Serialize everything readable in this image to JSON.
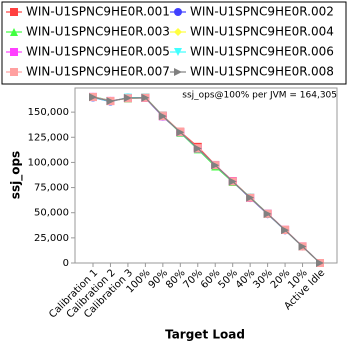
{
  "chart_data": {
    "type": "line",
    "annotation": "ssj_ops@100% per JVM = 164,305",
    "x_label": "Target Load",
    "y_label": "ssj_ops",
    "categories": [
      "Calibration 1",
      "Calibration 2",
      "Calibration 3",
      "100%",
      "90%",
      "80%",
      "70%",
      "60%",
      "50%",
      "40%",
      "30%",
      "20%",
      "10%",
      "Active Idle"
    ],
    "ylim": [
      0,
      174000
    ],
    "yticks": [
      0,
      {
        "value": 25000,
        "label": "25,000"
      },
      {
        "value": 50000,
        "label": "50,000"
      },
      {
        "value": 75000,
        "label": "75,000"
      },
      {
        "value": 100000,
        "label": "100,000"
      },
      {
        "value": 125000,
        "label": "125,000"
      },
      {
        "value": 150000,
        "label": "150,000"
      }
    ],
    "grid": false,
    "series": [
      {
        "name": "WIN-U1SPNC9HE0R.001",
        "color": "#ff4040",
        "marker": "square",
        "values": [
          165000,
          161000,
          164000,
          164500,
          146500,
          130500,
          115500,
          97500,
          81500,
          65000,
          49000,
          33000,
          16500,
          0
        ]
      },
      {
        "name": "WIN-U1SPNC9HE0R.002",
        "color": "#4040ff",
        "marker": "circle",
        "values": [
          164500,
          160500,
          164500,
          164000,
          145500,
          130000,
          113500,
          97000,
          81000,
          64500,
          48500,
          32500,
          16300,
          0
        ]
      },
      {
        "name": "WIN-U1SPNC9HE0R.003",
        "color": "#40ff40",
        "marker": "triangle-up",
        "values": [
          165500,
          161500,
          163500,
          164300,
          146000,
          129500,
          113000,
          96000,
          80500,
          65500,
          49000,
          32800,
          16400,
          0
        ]
      },
      {
        "name": "WIN-U1SPNC9HE0R.004",
        "color": "#ffff40",
        "marker": "diamond",
        "values": [
          164800,
          160800,
          164200,
          164600,
          146200,
          130200,
          114000,
          97200,
          81200,
          65200,
          48800,
          32700,
          16400,
          0
        ]
      },
      {
        "name": "WIN-U1SPNC9HE0R.005",
        "color": "#ff40ff",
        "marker": "square",
        "values": [
          165200,
          161200,
          164000,
          164100,
          145800,
          130100,
          113800,
          97400,
          81400,
          64800,
          49100,
          32900,
          16500,
          0
        ]
      },
      {
        "name": "WIN-U1SPNC9HE0R.006",
        "color": "#40ffff",
        "marker": "triangle-down",
        "values": [
          164600,
          160600,
          164400,
          164400,
          146300,
          129800,
          113600,
          97100,
          80800,
          65100,
          48900,
          32600,
          16300,
          0
        ]
      },
      {
        "name": "WIN-U1SPNC9HE0R.007",
        "color": "#ffa0a0",
        "marker": "square",
        "values": [
          165100,
          161100,
          163800,
          164200,
          146100,
          130300,
          114200,
          97300,
          81100,
          64900,
          49000,
          32800,
          16400,
          0
        ]
      },
      {
        "name": "WIN-U1SPNC9HE0R.008",
        "color": "#808080",
        "marker": "triangle-right",
        "values": [
          164900,
          160900,
          164100,
          164305,
          146000,
          130000,
          113900,
          97200,
          81000,
          65000,
          48900,
          32700,
          16400,
          0
        ]
      }
    ]
  }
}
